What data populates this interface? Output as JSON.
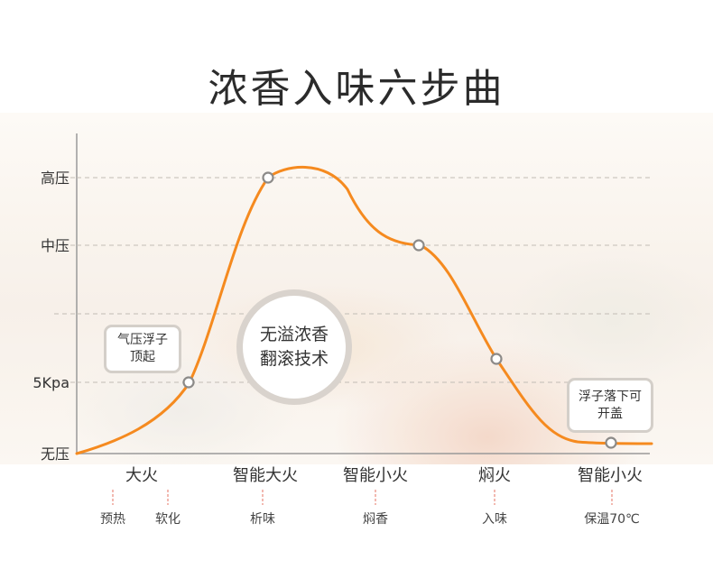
{
  "title": "浓香入味六步曲",
  "chart_data": {
    "type": "line",
    "title": "浓香入味六步曲",
    "y_levels": [
      {
        "label": "无压",
        "value": 0
      },
      {
        "label": "5Kpa",
        "value": 1
      },
      {
        "label": "",
        "value": 2
      },
      {
        "label": "中压",
        "value": 3
      },
      {
        "label": "高压",
        "value": 4
      }
    ],
    "stages": [
      "大火",
      "智能大火",
      "智能小火",
      "焖火",
      "智能小火"
    ],
    "steps": [
      "预热",
      "软化",
      "析味",
      "焖香",
      "入味",
      "保温70℃"
    ],
    "series": [
      {
        "values_approx": [
          0.0,
          1.0,
          4.0,
          4.3,
          3.0,
          1.0,
          0.0,
          0.0
        ],
        "color": "#f58a1f"
      }
    ],
    "markers": [
      {
        "x_step": "软化",
        "y": 1.0
      },
      {
        "x_step": "析味",
        "y": 4.0
      },
      {
        "x_step": "焖香",
        "y": 3.0
      },
      {
        "x_step": "入味",
        "y": 1.3
      },
      {
        "x_step": "保温70℃",
        "y": 0.0
      }
    ],
    "grid": true
  },
  "callouts": {
    "left": "气压浮子顶起",
    "right": "浮子落下可开盖",
    "center": "无溢浓香翻滚技术"
  },
  "colors": {
    "curve": "#f58a1f",
    "marker_stroke": "#8c8a88",
    "grid": "#c2bcb5",
    "axis": "#999999",
    "tick": "#e88a7c"
  }
}
